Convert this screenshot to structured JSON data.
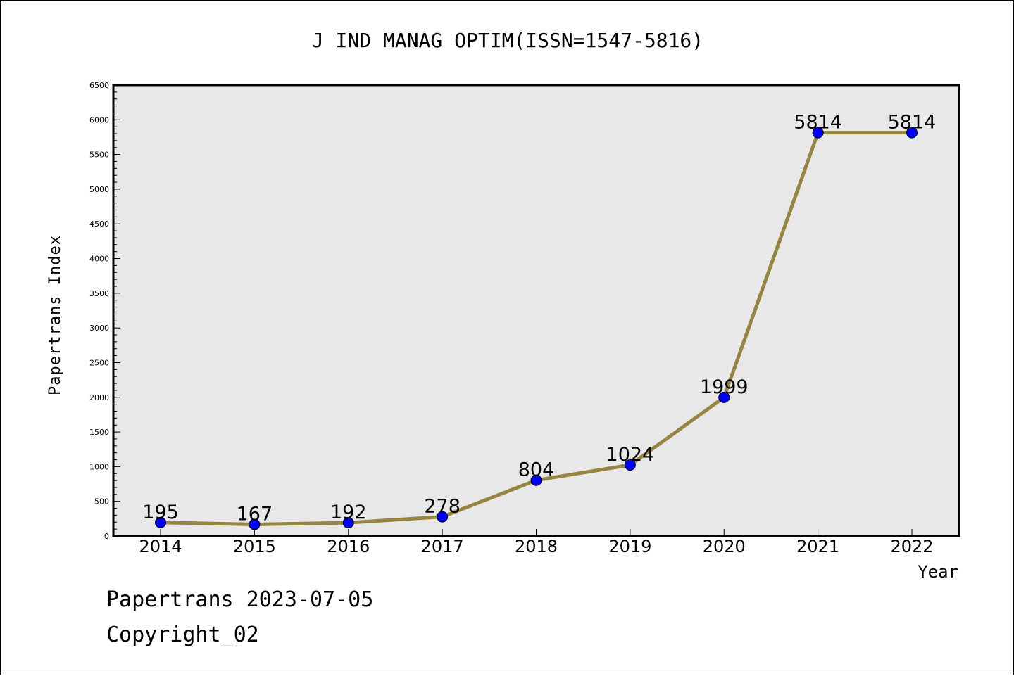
{
  "chart_data": {
    "type": "line",
    "title": "J IND MANAG OPTIM(ISSN=1547-5816)",
    "xlabel": "Year",
    "ylabel": "Papertrans Index",
    "categories": [
      "2014",
      "2015",
      "2016",
      "2017",
      "2018",
      "2019",
      "2020",
      "2021",
      "2022"
    ],
    "values": [
      195,
      167,
      192,
      278,
      804,
      1024,
      1999,
      5814,
      5814
    ],
    "data_labels": [
      "195",
      "167",
      "192",
      "278",
      "804",
      "1024",
      "1999",
      "5814",
      "5814"
    ],
    "ylim": [
      0,
      6500
    ],
    "yticks": [
      "0",
      "500",
      "1000",
      "1500",
      "2000",
      "2500",
      "3000",
      "3500",
      "4000",
      "4500",
      "5000",
      "5500",
      "6000",
      "6500"
    ],
    "grid": false,
    "colors": {
      "line": "#968540",
      "marker": "#0000ff",
      "plot_bg": "#e8e8e8"
    }
  },
  "footer": {
    "date_line": "Papertrans 2023-07-05",
    "copyright": "Copyright_02"
  }
}
